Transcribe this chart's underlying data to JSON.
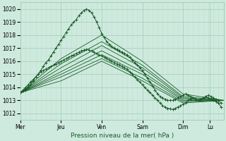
{
  "bg_color": "#ceeade",
  "grid_major_color": "#aacfbe",
  "grid_minor_color": "#c0dece",
  "line_color": "#1a5c28",
  "title": "Pression niveau de la mer( hPa )",
  "xlabel_days": [
    "Mer",
    "Jeu",
    "Ven",
    "Sam",
    "Dim",
    "Lu"
  ],
  "day_positions": [
    0,
    48,
    96,
    144,
    192,
    224
  ],
  "xlim": [
    0,
    240
  ],
  "ylim": [
    1011.5,
    1020.5
  ],
  "yticks": [
    1012,
    1013,
    1014,
    1015,
    1016,
    1017,
    1018,
    1019,
    1020
  ],
  "series": [
    {
      "style": "marker",
      "points": [
        [
          0,
          1013.6
        ],
        [
          3,
          1013.7
        ],
        [
          6,
          1013.8
        ],
        [
          9,
          1014.0
        ],
        [
          12,
          1014.2
        ],
        [
          15,
          1014.5
        ],
        [
          18,
          1014.8
        ],
        [
          21,
          1015.0
        ],
        [
          24,
          1015.3
        ],
        [
          27,
          1015.6
        ],
        [
          30,
          1015.9
        ],
        [
          33,
          1016.1
        ],
        [
          36,
          1016.4
        ],
        [
          39,
          1016.7
        ],
        [
          42,
          1017.0
        ],
        [
          45,
          1017.3
        ],
        [
          48,
          1017.6
        ],
        [
          51,
          1017.9
        ],
        [
          54,
          1018.2
        ],
        [
          57,
          1018.5
        ],
        [
          60,
          1018.8
        ],
        [
          63,
          1019.0
        ],
        [
          66,
          1019.2
        ],
        [
          69,
          1019.5
        ],
        [
          72,
          1019.7
        ],
        [
          75,
          1019.9
        ],
        [
          78,
          1020.0
        ],
        [
          81,
          1019.9
        ],
        [
          84,
          1019.7
        ],
        [
          87,
          1019.4
        ],
        [
          90,
          1019.0
        ],
        [
          93,
          1018.6
        ],
        [
          96,
          1018.1
        ],
        [
          99,
          1017.8
        ],
        [
          102,
          1017.5
        ],
        [
          105,
          1017.3
        ],
        [
          108,
          1017.1
        ],
        [
          111,
          1017.0
        ],
        [
          114,
          1016.9
        ],
        [
          117,
          1016.8
        ],
        [
          120,
          1016.7
        ],
        [
          123,
          1016.6
        ],
        [
          126,
          1016.5
        ],
        [
          129,
          1016.3
        ],
        [
          132,
          1016.1
        ],
        [
          135,
          1015.9
        ],
        [
          138,
          1015.7
        ],
        [
          141,
          1015.5
        ],
        [
          144,
          1015.3
        ],
        [
          147,
          1015.0
        ],
        [
          150,
          1014.7
        ],
        [
          153,
          1014.4
        ],
        [
          156,
          1014.1
        ],
        [
          159,
          1013.8
        ],
        [
          162,
          1013.5
        ],
        [
          165,
          1013.3
        ],
        [
          168,
          1013.2
        ],
        [
          171,
          1013.1
        ],
        [
          174,
          1013.0
        ],
        [
          177,
          1013.0
        ],
        [
          180,
          1013.0
        ],
        [
          183,
          1013.1
        ],
        [
          186,
          1013.2
        ],
        [
          189,
          1013.3
        ],
        [
          192,
          1013.4
        ],
        [
          195,
          1013.5
        ],
        [
          198,
          1013.4
        ],
        [
          201,
          1013.3
        ],
        [
          204,
          1013.2
        ],
        [
          207,
          1013.1
        ],
        [
          210,
          1013.0
        ],
        [
          213,
          1013.1
        ],
        [
          216,
          1013.2
        ],
        [
          219,
          1013.3
        ],
        [
          222,
          1013.4
        ],
        [
          225,
          1013.3
        ],
        [
          228,
          1013.2
        ],
        [
          231,
          1013.1
        ],
        [
          234,
          1013.0
        ],
        [
          237,
          1012.8
        ]
      ]
    },
    {
      "style": "line",
      "points": [
        [
          0,
          1013.6
        ],
        [
          48,
          1016.2
        ],
        [
          96,
          1018.0
        ],
        [
          144,
          1016.0
        ],
        [
          192,
          1013.5
        ],
        [
          240,
          1013.0
        ]
      ]
    },
    {
      "style": "line",
      "points": [
        [
          0,
          1013.6
        ],
        [
          48,
          1015.8
        ],
        [
          96,
          1017.5
        ],
        [
          144,
          1015.7
        ],
        [
          192,
          1013.3
        ],
        [
          240,
          1013.0
        ]
      ]
    },
    {
      "style": "line",
      "points": [
        [
          0,
          1013.6
        ],
        [
          48,
          1015.5
        ],
        [
          96,
          1017.2
        ],
        [
          144,
          1015.5
        ],
        [
          192,
          1013.2
        ],
        [
          240,
          1013.0
        ]
      ]
    },
    {
      "style": "line",
      "points": [
        [
          0,
          1013.6
        ],
        [
          48,
          1015.2
        ],
        [
          96,
          1016.8
        ],
        [
          144,
          1015.2
        ],
        [
          192,
          1013.1
        ],
        [
          240,
          1013.0
        ]
      ]
    },
    {
      "style": "line",
      "points": [
        [
          0,
          1013.6
        ],
        [
          48,
          1015.0
        ],
        [
          96,
          1016.5
        ],
        [
          144,
          1015.0
        ],
        [
          192,
          1013.0
        ],
        [
          240,
          1013.0
        ]
      ]
    },
    {
      "style": "line",
      "points": [
        [
          0,
          1013.6
        ],
        [
          48,
          1014.8
        ],
        [
          96,
          1016.2
        ],
        [
          144,
          1014.7
        ],
        [
          192,
          1012.9
        ],
        [
          240,
          1013.0
        ]
      ]
    },
    {
      "style": "line",
      "points": [
        [
          0,
          1013.6
        ],
        [
          48,
          1014.5
        ],
        [
          96,
          1016.0
        ],
        [
          144,
          1014.5
        ],
        [
          192,
          1012.8
        ],
        [
          240,
          1013.0
        ]
      ]
    },
    {
      "style": "marker",
      "points": [
        [
          0,
          1013.6
        ],
        [
          3,
          1013.8
        ],
        [
          6,
          1014.0
        ],
        [
          9,
          1014.2
        ],
        [
          12,
          1014.4
        ],
        [
          15,
          1014.6
        ],
        [
          18,
          1014.8
        ],
        [
          21,
          1015.0
        ],
        [
          24,
          1015.2
        ],
        [
          27,
          1015.3
        ],
        [
          30,
          1015.4
        ],
        [
          33,
          1015.5
        ],
        [
          36,
          1015.6
        ],
        [
          39,
          1015.7
        ],
        [
          42,
          1015.8
        ],
        [
          45,
          1015.9
        ],
        [
          48,
          1016.0
        ],
        [
          51,
          1016.1
        ],
        [
          54,
          1016.2
        ],
        [
          57,
          1016.3
        ],
        [
          60,
          1016.4
        ],
        [
          63,
          1016.5
        ],
        [
          66,
          1016.6
        ],
        [
          69,
          1016.7
        ],
        [
          72,
          1016.8
        ],
        [
          75,
          1016.85
        ],
        [
          78,
          1016.9
        ],
        [
          81,
          1016.85
        ],
        [
          84,
          1016.8
        ],
        [
          87,
          1016.7
        ],
        [
          90,
          1016.6
        ],
        [
          93,
          1016.5
        ],
        [
          96,
          1016.4
        ],
        [
          99,
          1016.3
        ],
        [
          102,
          1016.2
        ],
        [
          105,
          1016.1
        ],
        [
          108,
          1016.0
        ],
        [
          111,
          1015.9
        ],
        [
          114,
          1015.8
        ],
        [
          117,
          1015.7
        ],
        [
          120,
          1015.6
        ],
        [
          123,
          1015.5
        ],
        [
          126,
          1015.4
        ],
        [
          129,
          1015.2
        ],
        [
          132,
          1015.0
        ],
        [
          135,
          1014.8
        ],
        [
          138,
          1014.6
        ],
        [
          141,
          1014.4
        ],
        [
          144,
          1014.2
        ],
        [
          147,
          1014.0
        ],
        [
          150,
          1013.8
        ],
        [
          153,
          1013.6
        ],
        [
          156,
          1013.4
        ],
        [
          159,
          1013.2
        ],
        [
          162,
          1013.0
        ],
        [
          165,
          1012.8
        ],
        [
          168,
          1012.6
        ],
        [
          171,
          1012.5
        ],
        [
          174,
          1012.4
        ],
        [
          177,
          1012.35
        ],
        [
          180,
          1012.3
        ],
        [
          183,
          1012.4
        ],
        [
          186,
          1012.5
        ],
        [
          189,
          1012.6
        ],
        [
          192,
          1012.7
        ],
        [
          195,
          1012.8
        ],
        [
          198,
          1013.0
        ],
        [
          201,
          1013.1
        ],
        [
          204,
          1013.2
        ],
        [
          207,
          1013.1
        ],
        [
          210,
          1013.0
        ],
        [
          213,
          1013.1
        ],
        [
          216,
          1013.2
        ],
        [
          219,
          1013.3
        ],
        [
          222,
          1013.2
        ],
        [
          225,
          1013.1
        ],
        [
          228,
          1013.0
        ],
        [
          231,
          1012.9
        ],
        [
          234,
          1012.8
        ],
        [
          237,
          1012.5
        ]
      ]
    }
  ]
}
